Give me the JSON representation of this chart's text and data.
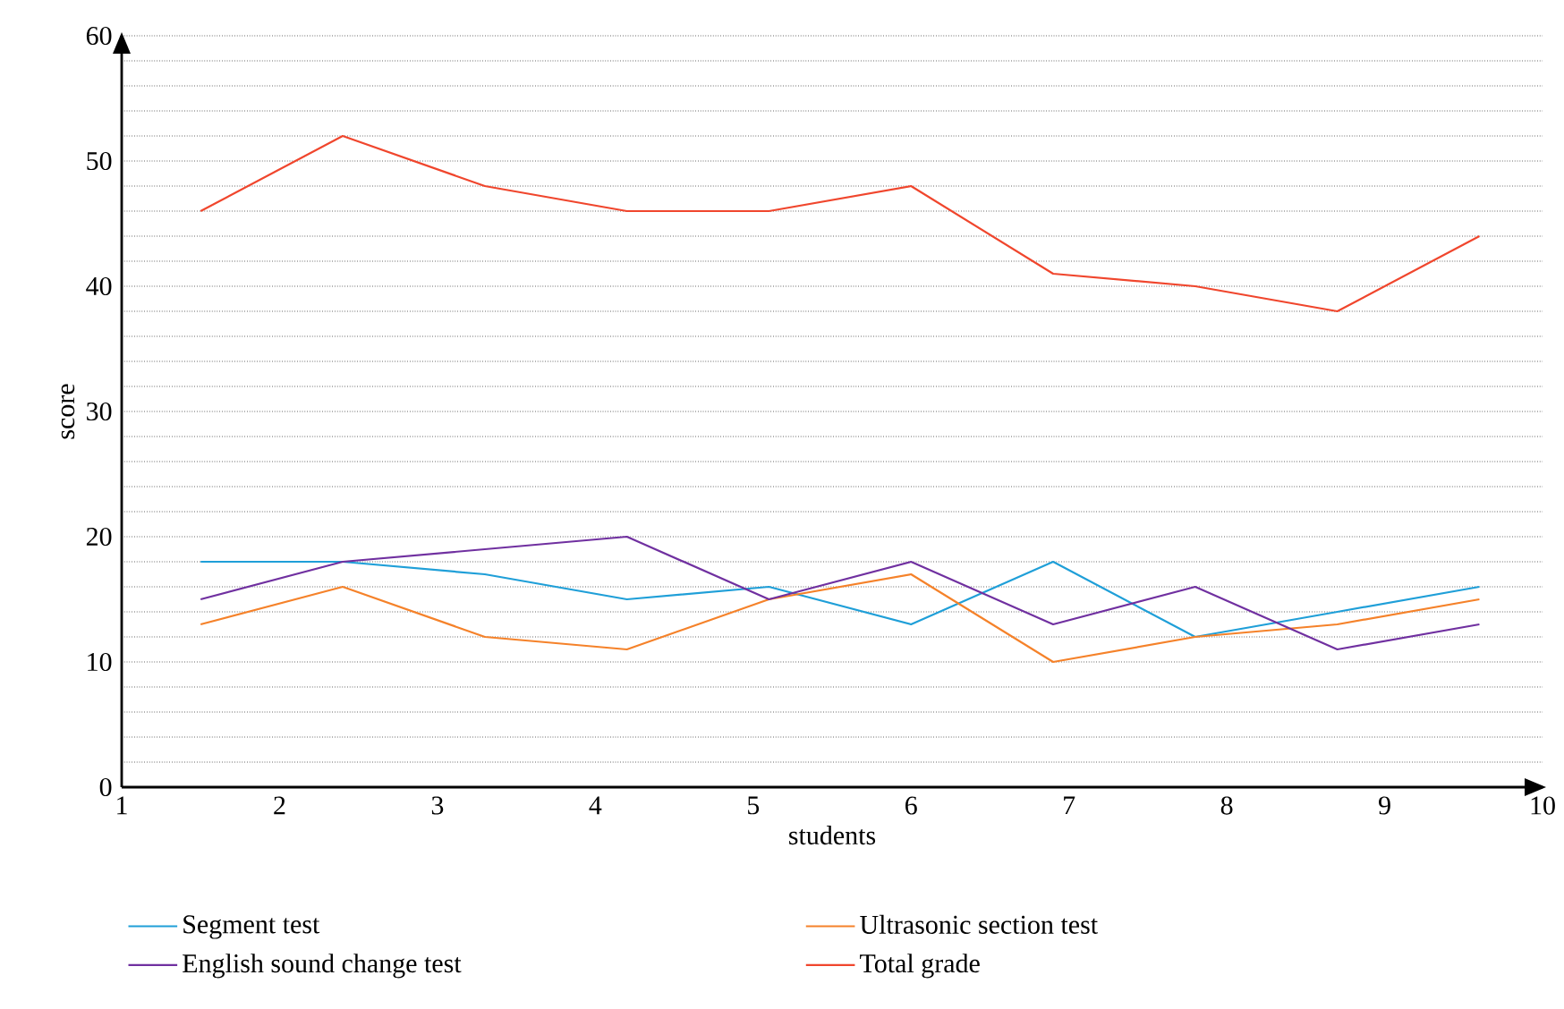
{
  "chart_data": {
    "type": "line",
    "xlabel": "students",
    "ylabel": "score",
    "x": [
      1.5,
      2.4,
      3.3,
      4.2,
      5.1,
      6.0,
      6.9,
      7.8,
      8.7,
      9.6
    ],
    "series": [
      {
        "name": "Segment test",
        "color": "#1f9fd8",
        "values": [
          18,
          18,
          17,
          15,
          16,
          13,
          18,
          12,
          14,
          16
        ]
      },
      {
        "name": "Ultrasonic section test",
        "color": "#f5822a",
        "values": [
          13,
          16,
          12,
          11,
          15,
          17,
          10,
          12,
          13,
          15
        ]
      },
      {
        "name": "English sound change test",
        "color": "#7030a0",
        "values": [
          15,
          18,
          19,
          20,
          15,
          18,
          13,
          16,
          11,
          13
        ]
      },
      {
        "name": "Total grade",
        "color": "#f0462d",
        "values": [
          46,
          52,
          48,
          46,
          46,
          48,
          41,
          40,
          38,
          44
        ]
      }
    ],
    "xlim": [
      1,
      10
    ],
    "xticks": [
      1,
      2,
      3,
      4,
      5,
      6,
      7,
      8,
      9,
      10
    ],
    "ylim": [
      0,
      60
    ],
    "yticks": [
      0,
      {
        "value": 2,
        "label": null
      },
      {
        "value": 4,
        "label": null
      },
      {
        "value": 6,
        "label": null
      },
      {
        "value": 8,
        "label": null
      },
      10,
      {
        "value": 12,
        "label": null
      },
      {
        "value": 14,
        "label": null
      },
      {
        "value": 16,
        "label": null
      },
      {
        "value": 18,
        "label": null
      },
      20,
      {
        "value": 22,
        "label": null
      },
      {
        "value": 24,
        "label": null
      },
      {
        "value": 26,
        "label": null
      },
      {
        "value": 28,
        "label": null
      },
      30,
      {
        "value": 32,
        "label": null
      },
      {
        "value": 34,
        "label": null
      },
      {
        "value": 36,
        "label": null
      },
      {
        "value": 38,
        "label": null
      },
      40,
      {
        "value": 42,
        "label": null
      },
      {
        "value": 44,
        "label": null
      },
      {
        "value": 46,
        "label": null
      },
      {
        "value": 48,
        "label": null
      },
      50,
      {
        "value": 52,
        "label": null
      },
      {
        "value": 54,
        "label": null
      },
      {
        "value": 56,
        "label": null
      },
      {
        "value": 58,
        "label": null
      },
      60
    ],
    "grid": "y",
    "legend": "bottom",
    "marker": "none",
    "line_style": "solid"
  }
}
